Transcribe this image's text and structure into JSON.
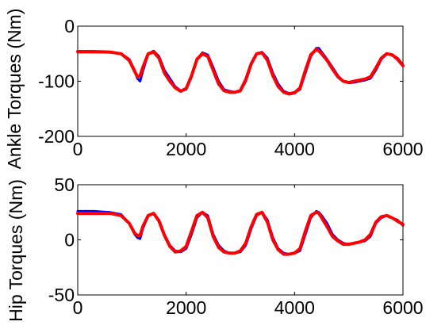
{
  "chart_data": [
    {
      "type": "line",
      "title": "",
      "xlabel": "",
      "ylabel": "Ankle Torques (Nm)",
      "xlim": [
        0,
        6000
      ],
      "ylim": [
        -200,
        0
      ],
      "xticks": [
        "0",
        "2000",
        "4000",
        "6000"
      ],
      "yticks": [
        "0",
        "-100",
        "-200"
      ],
      "grid": false,
      "series": [
        {
          "color": "#0000ff",
          "x": [
            0,
            300,
            600,
            800,
            950,
            1050,
            1100,
            1150,
            1200,
            1300,
            1400,
            1500,
            1600,
            1700,
            1800,
            1900,
            2000,
            2100,
            2200,
            2300,
            2400,
            2500,
            2600,
            2700,
            2800,
            2900,
            3000,
            3100,
            3200,
            3300,
            3400,
            3500,
            3600,
            3700,
            3800,
            3900,
            4000,
            4100,
            4200,
            4300,
            4400,
            4450,
            4500,
            4600,
            4700,
            4800,
            4900,
            5000,
            5100,
            5200,
            5300,
            5400,
            5500,
            5600,
            5700,
            5800,
            5900,
            6000
          ],
          "y": [
            -47,
            -47,
            -47,
            -50,
            -60,
            -80,
            -95,
            -100,
            -82,
            -50,
            -45,
            -55,
            -80,
            -95,
            -110,
            -117,
            -115,
            -92,
            -60,
            -48,
            -52,
            -75,
            -100,
            -115,
            -118,
            -120,
            -118,
            -100,
            -70,
            -50,
            -47,
            -58,
            -85,
            -105,
            -118,
            -122,
            -120,
            -115,
            -85,
            -55,
            -40,
            -40,
            -47,
            -60,
            -75,
            -90,
            -100,
            -103,
            -102,
            -100,
            -98,
            -95,
            -80,
            -60,
            -50,
            -52,
            -58,
            -70
          ]
        },
        {
          "color": "#ff0000",
          "x": [
            0,
            300,
            600,
            800,
            950,
            1050,
            1100,
            1150,
            1200,
            1300,
            1400,
            1500,
            1600,
            1700,
            1800,
            1900,
            2000,
            2100,
            2200,
            2300,
            2400,
            2500,
            2600,
            2700,
            2800,
            2900,
            3000,
            3100,
            3200,
            3300,
            3400,
            3500,
            3600,
            3700,
            3800,
            3900,
            4000,
            4100,
            4200,
            4300,
            4400,
            4450,
            4500,
            4600,
            4700,
            4800,
            4900,
            5000,
            5100,
            5200,
            5300,
            5400,
            5500,
            5600,
            5700,
            5800,
            5900,
            6000
          ],
          "y": [
            -46,
            -46,
            -47,
            -50,
            -62,
            -82,
            -92,
            -90,
            -75,
            -50,
            -47,
            -58,
            -85,
            -100,
            -112,
            -118,
            -113,
            -90,
            -60,
            -50,
            -55,
            -80,
            -105,
            -117,
            -120,
            -120,
            -117,
            -97,
            -68,
            -50,
            -48,
            -62,
            -90,
            -110,
            -120,
            -123,
            -121,
            -112,
            -80,
            -52,
            -42,
            -45,
            -50,
            -62,
            -78,
            -92,
            -100,
            -102,
            -100,
            -98,
            -96,
            -92,
            -76,
            -58,
            -50,
            -52,
            -60,
            -72
          ]
        }
      ]
    },
    {
      "type": "line",
      "title": "",
      "xlabel": "",
      "ylabel": "Hip Torques (Nm)",
      "xlim": [
        0,
        6000
      ],
      "ylim": [
        -50,
        50
      ],
      "xticks": [
        "0",
        "2000",
        "4000",
        "6000"
      ],
      "yticks": [
        "50",
        "0",
        "-50"
      ],
      "grid": false,
      "series": [
        {
          "color": "#0000ff",
          "x": [
            0,
            300,
            600,
            800,
            950,
            1050,
            1100,
            1150,
            1200,
            1300,
            1400,
            1500,
            1600,
            1700,
            1800,
            1900,
            2000,
            2100,
            2200,
            2300,
            2400,
            2500,
            2600,
            2700,
            2800,
            2900,
            3000,
            3100,
            3200,
            3300,
            3400,
            3500,
            3600,
            3700,
            3800,
            3900,
            4000,
            4100,
            4200,
            4300,
            4400,
            4450,
            4500,
            4600,
            4700,
            4800,
            4900,
            5000,
            5100,
            5200,
            5300,
            5400,
            5500,
            5600,
            5700,
            5800,
            5900,
            6000
          ],
          "y": [
            26,
            26,
            25,
            23,
            15,
            5,
            2,
            1,
            10,
            22,
            24,
            18,
            5,
            -5,
            -10,
            -11,
            -8,
            5,
            20,
            25,
            22,
            5,
            -5,
            -10,
            -12,
            -12,
            -11,
            -5,
            10,
            22,
            25,
            18,
            2,
            -8,
            -12,
            -13,
            -12,
            -10,
            5,
            20,
            26,
            25,
            22,
            15,
            5,
            0,
            -3,
            -4,
            -3,
            -2,
            -1,
            3,
            15,
            20,
            22,
            20,
            18,
            13
          ]
        },
        {
          "color": "#ff0000",
          "x": [
            0,
            300,
            600,
            800,
            950,
            1050,
            1100,
            1150,
            1200,
            1300,
            1400,
            1500,
            1600,
            1700,
            1800,
            1900,
            2000,
            2100,
            2200,
            2300,
            2400,
            2500,
            2600,
            2700,
            2800,
            2900,
            3000,
            3100,
            3200,
            3300,
            3400,
            3500,
            3600,
            3700,
            3800,
            3900,
            4000,
            4100,
            4200,
            4300,
            4400,
            4450,
            4500,
            4600,
            4700,
            4800,
            4900,
            5000,
            5100,
            5200,
            5300,
            5400,
            5500,
            5600,
            5700,
            5800,
            5900,
            6000
          ],
          "y": [
            24,
            24,
            24,
            22,
            15,
            6,
            4,
            4,
            12,
            22,
            24,
            17,
            4,
            -6,
            -11,
            -10,
            -6,
            8,
            22,
            25,
            20,
            3,
            -7,
            -11,
            -12,
            -12,
            -10,
            -3,
            12,
            23,
            25,
            16,
            0,
            -9,
            -13,
            -13,
            -12,
            -8,
            8,
            22,
            25,
            24,
            20,
            12,
            3,
            -1,
            -4,
            -4,
            -3,
            -2,
            0,
            5,
            16,
            21,
            22,
            20,
            17,
            14
          ]
        }
      ]
    }
  ]
}
